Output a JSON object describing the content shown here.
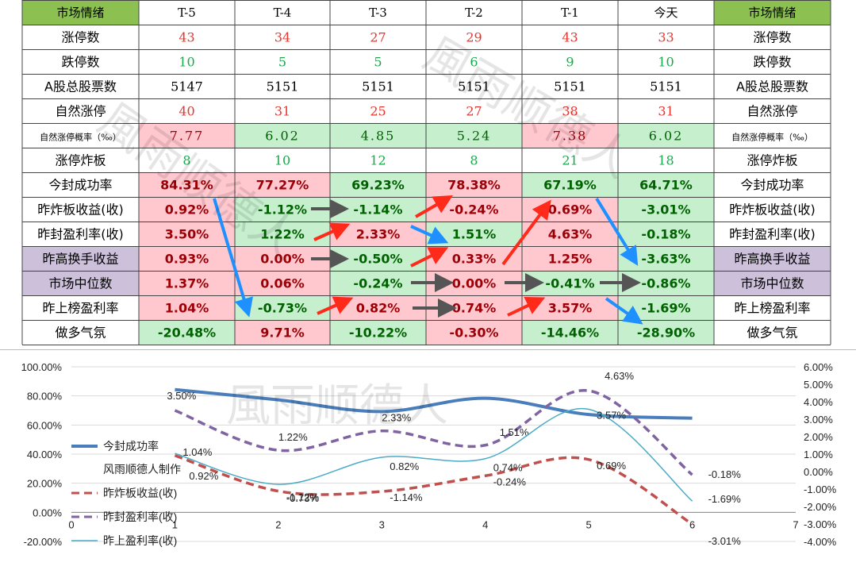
{
  "colors": {
    "header_green": "#8cc152",
    "pink": "#ffc7ce",
    "light_green": "#c6efce",
    "purple": "#ccc0da",
    "red_text": "#e8352e",
    "green_text": "#19a84c",
    "dark_green_text": "#006100",
    "dark_red_text": "#9c0006",
    "blue_arrow": "#1e90ff",
    "red_arrow": "#ff2a1a",
    "gray_arrow": "#555555"
  },
  "table": {
    "headers": [
      "市场情绪",
      "T-5",
      "T-4",
      "T-3",
      "T-2",
      "T-1",
      "今天",
      "市场情绪"
    ],
    "rows": [
      {
        "label": "涨停数",
        "values": [
          "43",
          "34",
          "27",
          "29",
          "43",
          "33"
        ],
        "style": "plain",
        "text": "red_text",
        "fills": [
          "",
          "",
          "",
          "",
          "",
          ""
        ]
      },
      {
        "label": "跌停数",
        "values": [
          "10",
          "5",
          "5",
          "6",
          "9",
          "10"
        ],
        "style": "plain",
        "text": "green_text",
        "fills": [
          "",
          "",
          "",
          "",
          "",
          ""
        ]
      },
      {
        "label": "A股总股票数",
        "values": [
          "5147",
          "5151",
          "5151",
          "5151",
          "5151",
          "5151"
        ],
        "style": "plain",
        "text": "black",
        "fills": [
          "",
          "",
          "",
          "",
          "",
          ""
        ]
      },
      {
        "label": "自然涨停",
        "values": [
          "40",
          "31",
          "25",
          "27",
          "38",
          "31"
        ],
        "style": "plain",
        "text": "red_text",
        "fills": [
          "",
          "",
          "",
          "",
          "",
          ""
        ]
      },
      {
        "label": "自然涨停概率（‰）",
        "values": [
          "7.77",
          "6.02",
          "4.85",
          "5.24",
          "7.38",
          "6.02"
        ],
        "style": "mono",
        "text": "auto",
        "fills": [
          "pink",
          "light_green",
          "light_green",
          "light_green",
          "pink",
          "light_green"
        ],
        "small_label": true
      },
      {
        "label": "涨停炸板",
        "values": [
          "8",
          "10",
          "12",
          "8",
          "21",
          "18"
        ],
        "style": "plain",
        "text": "green_text",
        "fills": [
          "",
          "",
          "",
          "",
          "",
          ""
        ]
      },
      {
        "label": "今封成功率",
        "values": [
          "84.31%",
          "77.27%",
          "69.23%",
          "78.38%",
          "67.19%",
          "64.71%"
        ],
        "style": "pct",
        "text": "auto",
        "fills": [
          "pink",
          "pink",
          "light_green",
          "pink",
          "light_green",
          "light_green"
        ]
      },
      {
        "label": "昨炸板收益(收)",
        "values": [
          "0.92%",
          "-1.12%",
          "-1.14%",
          "-0.24%",
          "0.69%",
          "-3.01%"
        ],
        "style": "pct",
        "text": "auto",
        "fills": [
          "pink",
          "light_green",
          "light_green",
          "pink",
          "pink",
          "light_green"
        ]
      },
      {
        "label": "昨封盈利率(收)",
        "values": [
          "3.50%",
          "1.22%",
          "2.33%",
          "1.51%",
          "4.63%",
          "-0.18%"
        ],
        "style": "pct",
        "text": "auto",
        "fills": [
          "pink",
          "light_green",
          "pink",
          "light_green",
          "pink",
          "light_green"
        ]
      },
      {
        "label": "昨高换手收益",
        "values": [
          "0.93%",
          "0.00%",
          "-0.50%",
          "0.33%",
          "1.25%",
          "-3.63%"
        ],
        "style": "pct",
        "text": "auto",
        "fills": [
          "pink",
          "pink",
          "light_green",
          "pink",
          "pink",
          "light_green"
        ],
        "label_fill": "purple"
      },
      {
        "label": "市场中位数",
        "values": [
          "1.37%",
          "0.06%",
          "-0.24%",
          "0.00%",
          "-0.41%",
          "-0.86%"
        ],
        "style": "pct",
        "text": "auto",
        "fills": [
          "pink",
          "pink",
          "light_green",
          "pink",
          "light_green",
          "light_green"
        ],
        "label_fill": "purple"
      },
      {
        "label": "昨上榜盈利率",
        "values": [
          "1.04%",
          "-0.73%",
          "0.82%",
          "0.74%",
          "3.57%",
          "-1.69%"
        ],
        "style": "pct",
        "text": "auto",
        "fills": [
          "pink",
          "light_green",
          "pink",
          "pink",
          "pink",
          "light_green"
        ]
      },
      {
        "label": "做多气氛",
        "values": [
          "-20.48%",
          "9.71%",
          "-10.22%",
          "-0.30%",
          "-14.46%",
          "-28.90%"
        ],
        "style": "pct",
        "text": "auto",
        "fills": [
          "light_green",
          "pink",
          "light_green",
          "pink",
          "light_green",
          "light_green"
        ]
      }
    ]
  },
  "watermarks": [
    "風雨顺德人",
    "風雨顺德人",
    "風雨顺德人"
  ],
  "chart_data": {
    "type": "line",
    "x": [
      1,
      2,
      3,
      4,
      5,
      6
    ],
    "xlim": [
      0,
      7
    ],
    "x_ticks": [
      "0",
      "1",
      "2",
      "3",
      "4",
      "5",
      "6",
      "7"
    ],
    "ylim_left": [
      -20,
      100
    ],
    "y_ticks_left": [
      "100.00%",
      "80.00%",
      "60.00%",
      "40.00%",
      "20.00%",
      "0.00%",
      "-20.00%"
    ],
    "ylim_right": [
      -4,
      6
    ],
    "y_ticks_right": [
      "6.00%",
      "5.00%",
      "4.00%",
      "3.00%",
      "2.00%",
      "1.00%",
      "0.00%",
      "-1.00%",
      "-2.00%",
      "-3.00%",
      "-4.00%"
    ],
    "legend_note": "风雨顺德人制作",
    "series": [
      {
        "name": "今封成功率",
        "axis": "left",
        "values": [
          84.31,
          77.27,
          69.23,
          78.38,
          67.19,
          64.71
        ],
        "color": "#4a7ebb",
        "dash": "",
        "width": 4,
        "labels": [
          "",
          "",
          "",
          "",
          "",
          ""
        ]
      },
      {
        "name": "昨炸板收益(收)",
        "axis": "right",
        "values": [
          0.92,
          -1.12,
          -1.14,
          -0.24,
          0.69,
          -3.01
        ],
        "color": "#c0504d",
        "dash": "10 6",
        "width": 3.5,
        "labels": [
          "0.92%",
          "-1.12%",
          "-1.14%",
          "-0.24%",
          "0.69%",
          "-3.01%"
        ]
      },
      {
        "name": "昨封盈利率(收)",
        "axis": "right",
        "values": [
          3.5,
          1.22,
          2.33,
          1.51,
          4.63,
          -0.18
        ],
        "color": "#8064a2",
        "dash": "10 6",
        "width": 3.5,
        "labels": [
          "3.50%",
          "1.22%",
          "2.33%",
          "1.51%",
          "4.63%",
          "-0.18%"
        ]
      },
      {
        "name": "昨上盈利率(收)",
        "axis": "right",
        "values": [
          1.04,
          -0.73,
          0.82,
          0.74,
          3.57,
          -1.69
        ],
        "color": "#4bacc6",
        "dash": "",
        "width": 1.5,
        "labels": [
          "1.04%",
          "-0.73%",
          "0.82%",
          "0.74%",
          "3.57%",
          "-1.69%"
        ]
      }
    ]
  }
}
